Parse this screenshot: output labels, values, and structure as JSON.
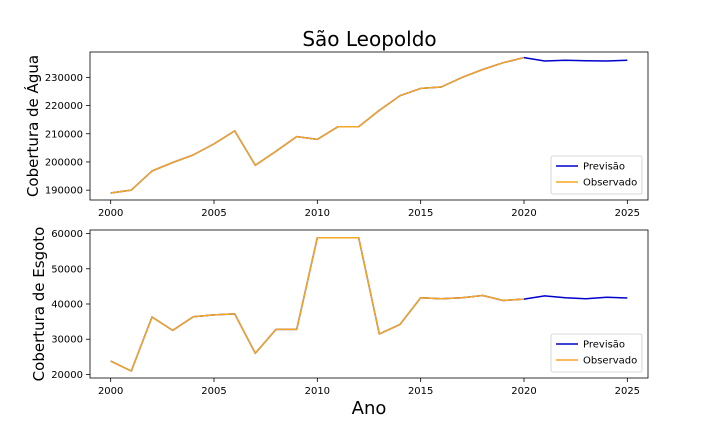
{
  "figure": {
    "title": "São Leopoldo",
    "xlabel": "Ano"
  },
  "chart_data": [
    {
      "type": "line",
      "ylabel": "Cobertura de Água",
      "xlim": [
        1999,
        2026
      ],
      "ylim": [
        186500,
        239000
      ],
      "xticks": [
        2000,
        2005,
        2010,
        2015,
        2020,
        2025
      ],
      "yticks": [
        190000,
        200000,
        210000,
        220000,
        230000
      ],
      "legend_position": "lower-right",
      "series": [
        {
          "name": "Previsão",
          "color": "#0000cc",
          "x": [
            2000,
            2001,
            2002,
            2003,
            2004,
            2005,
            2006,
            2007,
            2008,
            2009,
            2010,
            2011,
            2012,
            2013,
            2014,
            2015,
            2016,
            2017,
            2018,
            2019,
            2020,
            2021,
            2022,
            2023,
            2024,
            2025
          ],
          "y": [
            189000,
            190000,
            196800,
            199800,
            202500,
            206400,
            211000,
            198800,
            203800,
            209000,
            208000,
            212500,
            212500,
            218300,
            223500,
            226100,
            226600,
            230000,
            232800,
            235200,
            237000,
            235800,
            236100,
            235900,
            235800,
            236100
          ]
        },
        {
          "name": "Observado",
          "color": "#f5a623",
          "x": [
            2000,
            2001,
            2002,
            2003,
            2004,
            2005,
            2006,
            2007,
            2008,
            2009,
            2010,
            2011,
            2012,
            2013,
            2014,
            2015,
            2016,
            2017,
            2018,
            2019,
            2020
          ],
          "y": [
            189000,
            190000,
            196800,
            199800,
            202500,
            206400,
            211000,
            198800,
            203800,
            209000,
            208000,
            212500,
            212500,
            218300,
            223500,
            226100,
            226600,
            230000,
            232800,
            235200,
            237000
          ]
        }
      ]
    },
    {
      "type": "line",
      "ylabel": "Cobertura de Esgoto",
      "xlim": [
        1999,
        2026
      ],
      "ylim": [
        19000,
        61000
      ],
      "xticks": [
        2000,
        2005,
        2010,
        2015,
        2020,
        2025
      ],
      "yticks": [
        20000,
        30000,
        40000,
        50000,
        60000
      ],
      "legend_position": "lower-right",
      "series": [
        {
          "name": "Previsão",
          "color": "#0000cc",
          "x": [
            2000,
            2001,
            2002,
            2003,
            2004,
            2005,
            2006,
            2007,
            2008,
            2009,
            2010,
            2011,
            2012,
            2013,
            2014,
            2015,
            2016,
            2017,
            2018,
            2019,
            2020,
            2021,
            2022,
            2023,
            2024,
            2025
          ],
          "y": [
            23800,
            21000,
            36300,
            32500,
            36400,
            36900,
            37200,
            26000,
            32800,
            32800,
            58800,
            58800,
            58800,
            31500,
            34200,
            41800,
            41500,
            41800,
            42400,
            41000,
            41400,
            42300,
            41800,
            41500,
            41900,
            41700
          ]
        },
        {
          "name": "Observado",
          "color": "#f5a623",
          "x": [
            2000,
            2001,
            2002,
            2003,
            2004,
            2005,
            2006,
            2007,
            2008,
            2009,
            2010,
            2011,
            2012,
            2013,
            2014,
            2015,
            2016,
            2017,
            2018,
            2019,
            2020
          ],
          "y": [
            23800,
            21000,
            36300,
            32500,
            36400,
            36900,
            37200,
            26000,
            32800,
            32800,
            58800,
            58800,
            58800,
            31500,
            34200,
            41800,
            41500,
            41800,
            42400,
            41000,
            41400
          ]
        }
      ]
    }
  ]
}
